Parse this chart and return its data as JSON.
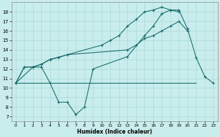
{
  "xlabel": "Humidex (Indice chaleur)",
  "bg_color": "#c8edec",
  "grid_color": "#a8d8d6",
  "line_color": "#1a6b6b",
  "xlim": [
    -0.5,
    23.5
  ],
  "ylim": [
    6.5,
    19.0
  ],
  "xticks": [
    0,
    1,
    2,
    3,
    4,
    5,
    6,
    7,
    8,
    9,
    10,
    11,
    12,
    13,
    14,
    15,
    16,
    17,
    18,
    19,
    20,
    21,
    22,
    23
  ],
  "yticks": [
    7,
    8,
    9,
    10,
    11,
    12,
    13,
    14,
    15,
    16,
    17,
    18
  ],
  "s1x": [
    0,
    1,
    2,
    3,
    4,
    5,
    6,
    7,
    8,
    9,
    13,
    15,
    16,
    17,
    18,
    19,
    20,
    21,
    22,
    23
  ],
  "s1y": [
    10.5,
    12.2,
    12.2,
    12.2,
    10.5,
    8.5,
    8.5,
    7.2,
    8.0,
    12.0,
    13.3,
    15.5,
    16.5,
    17.8,
    18.2,
    18.2,
    16.2,
    13.2,
    11.2,
    10.5
  ],
  "s2x": [
    0,
    1,
    2,
    3,
    4,
    5,
    6,
    13,
    14,
    15,
    16,
    17,
    18,
    19,
    20
  ],
  "s2y": [
    10.5,
    12.2,
    12.2,
    12.5,
    13.0,
    13.2,
    13.5,
    14.0,
    14.5,
    15.2,
    15.5,
    16.0,
    16.5,
    17.0,
    16.0
  ],
  "s3x": [
    0,
    2,
    3,
    4,
    10,
    11,
    12,
    13,
    14,
    15,
    16,
    17,
    18,
    19
  ],
  "s3y": [
    10.5,
    12.2,
    12.5,
    13.0,
    14.5,
    15.0,
    15.5,
    16.5,
    17.2,
    18.0,
    18.2,
    18.5,
    18.2,
    18.0
  ],
  "hx": [
    0,
    4,
    19,
    21
  ],
  "hy": [
    10.5,
    10.5,
    10.5,
    10.5
  ]
}
